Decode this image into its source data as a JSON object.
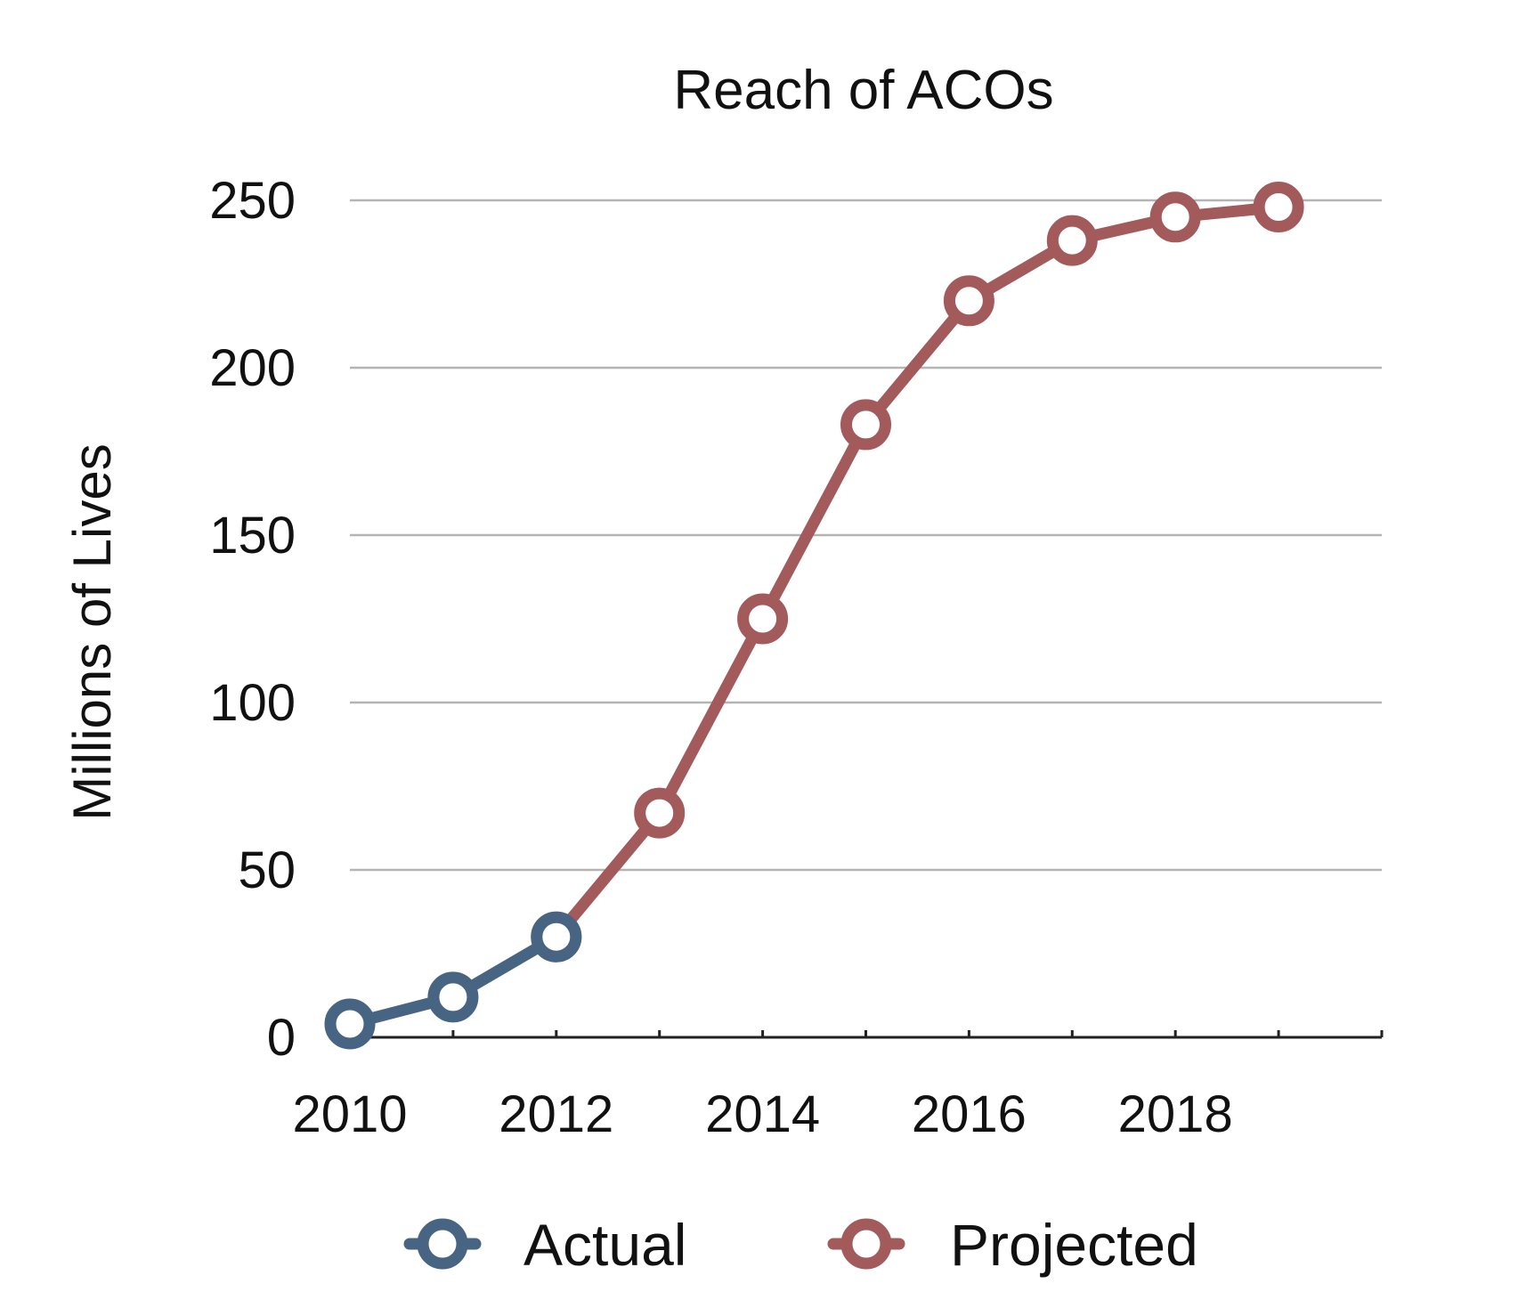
{
  "chart_data": {
    "type": "line",
    "title": "Reach of ACOs",
    "ylabel": "Millions of Lives",
    "xlabel": "",
    "x": [
      2010,
      2011,
      2012,
      2013,
      2014,
      2015,
      2016,
      2017,
      2018,
      2019
    ],
    "x_tick_labels": [
      "2010",
      "2012",
      "2014",
      "2016",
      "2018"
    ],
    "y_tick_labels": [
      "0",
      "50",
      "100",
      "150",
      "200",
      "250"
    ],
    "xlim": [
      2010,
      2020
    ],
    "ylim": [
      0,
      250
    ],
    "grid": "horizontal",
    "legend_position": "bottom",
    "series": [
      {
        "name": "Actual",
        "color": "#476482",
        "x": [
          2010,
          2011,
          2012
        ],
        "values": [
          4,
          12,
          30
        ]
      },
      {
        "name": "Projected",
        "color": "#a35a5b",
        "x": [
          2012,
          2013,
          2014,
          2015,
          2016,
          2017,
          2018,
          2019
        ],
        "values": [
          30,
          67,
          125,
          183,
          220,
          238,
          245,
          248
        ]
      }
    ]
  }
}
